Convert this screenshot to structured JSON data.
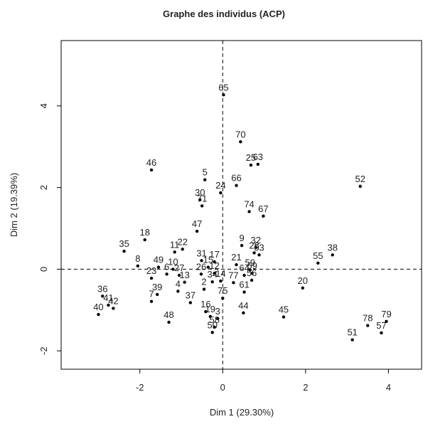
{
  "chart_data": {
    "type": "scatter",
    "title": "Graphe des individus (ACP)",
    "xlabel": "Dim 1 (29.30%)",
    "ylabel": "Dim 2 (19.39%)",
    "xlim": [
      -3.9,
      4.8
    ],
    "ylim": [
      -2.45,
      5.6
    ],
    "xticks": [
      -2,
      0,
      2,
      4
    ],
    "yticks": [
      -2,
      0,
      2,
      4
    ],
    "xtick_labels": [
      "-2",
      "0",
      "2",
      "4"
    ],
    "ytick_labels": [
      "-2",
      "0",
      "2",
      "4"
    ],
    "reference_lines": {
      "x": 0,
      "y": 0,
      "style": "dashed"
    },
    "grid": false,
    "marker_color": "#000000",
    "points": [
      {
        "label": "65",
        "x": 0.02,
        "y": 4.27
      },
      {
        "label": "70",
        "x": 0.43,
        "y": 3.12
      },
      {
        "label": "25",
        "x": 0.68,
        "y": 2.55
      },
      {
        "label": "63",
        "x": 0.85,
        "y": 2.57
      },
      {
        "label": "46",
        "x": -1.72,
        "y": 2.43
      },
      {
        "label": "5",
        "x": -0.43,
        "y": 2.19
      },
      {
        "label": "66",
        "x": 0.33,
        "y": 2.05
      },
      {
        "label": "24",
        "x": -0.05,
        "y": 1.87
      },
      {
        "label": "30",
        "x": -0.55,
        "y": 1.7
      },
      {
        "label": "71",
        "x": -0.5,
        "y": 1.55
      },
      {
        "label": "52",
        "x": 3.32,
        "y": 2.03
      },
      {
        "label": "74",
        "x": 0.64,
        "y": 1.41
      },
      {
        "label": "67",
        "x": 0.98,
        "y": 1.3
      },
      {
        "label": "47",
        "x": -0.62,
        "y": 0.93
      },
      {
        "label": "18",
        "x": -1.88,
        "y": 0.72
      },
      {
        "label": "9",
        "x": 0.46,
        "y": 0.58
      },
      {
        "label": "32",
        "x": 0.8,
        "y": 0.53
      },
      {
        "label": "28",
        "x": 0.76,
        "y": 0.4
      },
      {
        "label": "53",
        "x": 0.88,
        "y": 0.35
      },
      {
        "label": "22",
        "x": -0.97,
        "y": 0.49
      },
      {
        "label": "11",
        "x": -1.16,
        "y": 0.42
      },
      {
        "label": "35",
        "x": -2.38,
        "y": 0.44
      },
      {
        "label": "38",
        "x": 2.65,
        "y": 0.35
      },
      {
        "label": "55",
        "x": 2.3,
        "y": 0.15
      },
      {
        "label": "31",
        "x": -0.51,
        "y": 0.21
      },
      {
        "label": "17",
        "x": -0.2,
        "y": 0.18
      },
      {
        "label": "15",
        "x": -0.35,
        "y": 0.05
      },
      {
        "label": "8",
        "x": -2.05,
        "y": 0.08
      },
      {
        "label": "49",
        "x": -1.55,
        "y": 0.05
      },
      {
        "label": "10",
        "x": -1.2,
        "y": 0.0
      },
      {
        "label": "6",
        "x": -1.35,
        "y": -0.12
      },
      {
        "label": "23",
        "x": -1.72,
        "y": -0.22
      },
      {
        "label": "27",
        "x": -1.05,
        "y": -0.15
      },
      {
        "label": "26",
        "x": -0.52,
        "y": -0.12
      },
      {
        "label": "21",
        "x": 0.33,
        "y": 0.11
      },
      {
        "label": "59",
        "x": 0.66,
        "y": -0.02
      },
      {
        "label": "69",
        "x": 0.71,
        "y": -0.1
      },
      {
        "label": "12",
        "x": -0.2,
        "y": -0.1
      },
      {
        "label": "64",
        "x": 0.52,
        "y": -0.15
      },
      {
        "label": "13",
        "x": -0.92,
        "y": -0.32
      },
      {
        "label": "34",
        "x": -0.25,
        "y": -0.31
      },
      {
        "label": "14",
        "x": -0.05,
        "y": -0.29
      },
      {
        "label": "77",
        "x": 0.26,
        "y": -0.33
      },
      {
        "label": "56",
        "x": 0.7,
        "y": -0.27
      },
      {
        "label": "20",
        "x": 1.93,
        "y": -0.46
      },
      {
        "label": "39",
        "x": -1.58,
        "y": -0.62
      },
      {
        "label": "7",
        "x": -1.72,
        "y": -0.79
      },
      {
        "label": "4",
        "x": -1.08,
        "y": -0.54
      },
      {
        "label": "37",
        "x": -0.78,
        "y": -0.82
      },
      {
        "label": "2",
        "x": -0.45,
        "y": -0.49
      },
      {
        "label": "75",
        "x": 0.0,
        "y": -0.71
      },
      {
        "label": "61",
        "x": 0.52,
        "y": -0.56
      },
      {
        "label": "36",
        "x": -2.9,
        "y": -0.66
      },
      {
        "label": "41",
        "x": -2.76,
        "y": -0.88
      },
      {
        "label": "42",
        "x": -2.64,
        "y": -0.96
      },
      {
        "label": "40",
        "x": -3.0,
        "y": -1.11
      },
      {
        "label": "16",
        "x": -0.41,
        "y": -1.04
      },
      {
        "label": "44",
        "x": 0.5,
        "y": -1.07
      },
      {
        "label": "45",
        "x": 1.47,
        "y": -1.17
      },
      {
        "label": "48",
        "x": -1.3,
        "y": -1.3
      },
      {
        "label": "19",
        "x": -0.3,
        "y": -1.16
      },
      {
        "label": "3",
        "x": -0.12,
        "y": -1.21
      },
      {
        "label": "58",
        "x": -0.2,
        "y": -1.42
      },
      {
        "label": "50",
        "x": -0.25,
        "y": -1.55
      },
      {
        "label": "78",
        "x": 3.5,
        "y": -1.38
      },
      {
        "label": "79",
        "x": 3.95,
        "y": -1.28
      },
      {
        "label": "57",
        "x": 3.83,
        "y": -1.56
      },
      {
        "label": "51",
        "x": 3.13,
        "y": -1.73
      }
    ]
  }
}
